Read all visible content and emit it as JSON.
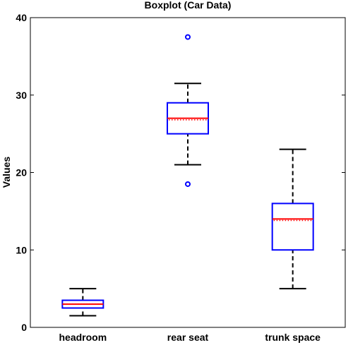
{
  "chart_data": {
    "type": "boxplot",
    "title": "Boxplot (Car Data)",
    "xlabel": "",
    "ylabel": "Values",
    "ylim": [
      0,
      40
    ],
    "yticks": [
      0,
      10,
      20,
      30,
      40
    ],
    "grid": false,
    "categories": [
      "headroom",
      "rear seat",
      "trunk space"
    ],
    "boxes": [
      {
        "category": "headroom",
        "whisker_low": 1.5,
        "q1": 2.5,
        "median": 3.0,
        "mean": 3.0,
        "q3": 3.5,
        "whisker_high": 5.0,
        "outliers": []
      },
      {
        "category": "rear seat",
        "whisker_low": 21.0,
        "q1": 25.0,
        "median": 27.0,
        "mean": 26.8,
        "q3": 29.0,
        "whisker_high": 31.5,
        "outliers": [
          18.5,
          37.5
        ]
      },
      {
        "category": "trunk space",
        "whisker_low": 5.0,
        "q1": 10.0,
        "median": 14.0,
        "mean": 13.8,
        "q3": 16.0,
        "whisker_high": 23.0,
        "outliers": []
      }
    ],
    "colors": {
      "box": "#0000ff",
      "median": "#ff0000",
      "mean": "#ff0000",
      "whisker": "#000000",
      "outlier": "#0000ff"
    }
  }
}
